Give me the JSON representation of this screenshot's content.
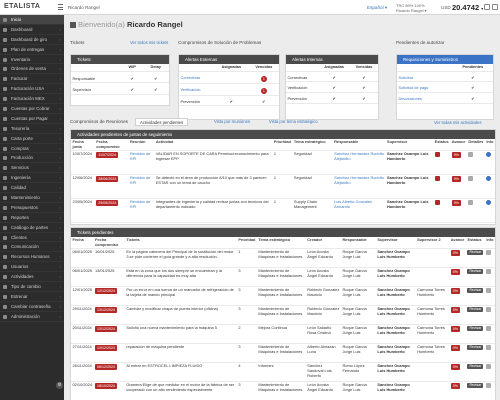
{
  "topbar": {
    "logo": "ETALISTA",
    "breadcrumb": "Ricardo Rangel",
    "language": "Español ▾",
    "user_line1": "TRC 89% 100%",
    "user_line2": "Ricardo Rangel ▾",
    "currency": "USD",
    "exchange": "20.4742",
    "exchange_suffix": "▾"
  },
  "sidebar": {
    "items": [
      {
        "label": "Inicio",
        "icon": "home-icon",
        "active": true
      },
      {
        "label": "Dashboard",
        "icon": "dashboard-icon"
      },
      {
        "label": "Dashboard de giro",
        "icon": "dashboard-icon"
      },
      {
        "label": "Plan de entregas",
        "icon": "calendar-icon"
      },
      {
        "label": "Inventario",
        "icon": "box-icon"
      },
      {
        "label": "Órdenes de venta",
        "icon": "cart-icon"
      },
      {
        "label": "Facturar",
        "icon": "invoice-icon"
      },
      {
        "label": "Facturación USA",
        "icon": "invoice-icon"
      },
      {
        "label": "Facturación MEX",
        "icon": "invoice-icon"
      },
      {
        "label": "Cuentas por Cobrar",
        "icon": "money-icon"
      },
      {
        "label": "Cuentas por Pagar",
        "icon": "money-icon"
      },
      {
        "label": "Tesorería",
        "icon": "bank-icon"
      },
      {
        "label": "Carta porte",
        "icon": "truck-icon"
      },
      {
        "label": "Compras",
        "icon": "bag-icon"
      },
      {
        "label": "Producción",
        "icon": "factory-icon"
      },
      {
        "label": "Servicios",
        "icon": "wrench-icon"
      },
      {
        "label": "Ingeniería",
        "icon": "gear-icon"
      },
      {
        "label": "Calidad",
        "icon": "check-icon"
      },
      {
        "label": "Mantenimiento",
        "icon": "tools-icon"
      },
      {
        "label": "Presupuestos",
        "icon": "chart-icon"
      },
      {
        "label": "Reportes",
        "icon": "report-icon"
      },
      {
        "label": "Catálogo de partes",
        "icon": "catalog-icon"
      },
      {
        "label": "Clientes",
        "icon": "users-icon"
      },
      {
        "label": "Comunicación",
        "icon": "chat-icon"
      },
      {
        "label": "Recursos Humanos",
        "icon": "people-icon"
      },
      {
        "label": "Usuarios",
        "icon": "user-icon"
      },
      {
        "label": "Actividades",
        "icon": "list-icon"
      },
      {
        "label": "Tipo de cambio",
        "icon": "exchange-icon"
      },
      {
        "label": "Estrenar",
        "icon": "star-icon"
      },
      {
        "label": "Cambiar contraseña",
        "icon": "lock-icon"
      },
      {
        "label": "Administración",
        "icon": "admin-icon"
      }
    ]
  },
  "page": {
    "title_prefix": "Bienvenido(a)",
    "title_name": "Ricardo Rangel"
  },
  "tickets_summary": {
    "title": "Tickets",
    "link": "Ver todos mis tickets",
    "header": "Tickets",
    "cols": [
      "",
      "WIP",
      "Delay"
    ],
    "rows": [
      {
        "label": "Responsable",
        "wip": "✔",
        "delay": "✔"
      },
      {
        "label": "Supervisor",
        "wip": "✔",
        "delay": "✔"
      }
    ]
  },
  "compromisos": {
    "title": "Compromisos de Solución de Problemas",
    "externas": {
      "header": "Alertas Externas",
      "cols": [
        "",
        "Asignadas",
        "Vencidas"
      ],
      "rows": [
        {
          "label": "Correctivas",
          "a": "",
          "v": "1"
        },
        {
          "label": "Verificación",
          "a": "",
          "v": "1"
        },
        {
          "label": "Prevención",
          "a": "✔",
          "v": "✔"
        }
      ]
    },
    "internas": {
      "header": "Alertas Internas",
      "cols": [
        "",
        "Asignadas",
        "Vencidas"
      ],
      "rows": [
        {
          "label": "Correctivas",
          "a": "✔",
          "v": "✔"
        },
        {
          "label": "Verificación",
          "a": "✔",
          "v": "✔"
        },
        {
          "label": "Prevención",
          "a": "✔",
          "v": "✔"
        }
      ]
    }
  },
  "pendientes": {
    "title": "Pendientes de autorizar",
    "header": "Requisiciones y Suministros",
    "cols": [
      "",
      "Pendientes"
    ],
    "rows": [
      {
        "label": "Solicitud",
        "v": "✔"
      },
      {
        "label": "Solicitud de pago",
        "v": "✔"
      },
      {
        "label": "Devoluciones",
        "v": "✔"
      }
    ]
  },
  "reuniones": {
    "title": "Compromisos de Reuniones",
    "tab_active": "Actividades pendientes",
    "tab2": "Vista por reuniones",
    "tab3": "Vista por tema estratégico",
    "link": "Ver todas mis actividades",
    "header": "Actividades pendientes de juntas de seguimiento",
    "cols": [
      "Fecha junta",
      "Fecha compromiso",
      "Reunión",
      "Actividad",
      "Prioridad",
      "Tema estratégico",
      "Responsable",
      "Supervisor",
      "Estatus",
      "Avance",
      "Detalles",
      "Info"
    ],
    "rows": [
      {
        "junta": "10/07/2024",
        "comp": "11/07/2024",
        "reunion": "Revisión de KPI",
        "act": "VALIDAR EN SOPORTE DE CARA Permiso/reconocimiento para ingresar EPP",
        "prio": "1",
        "tema": "Seguridad",
        "resp": "Sanchez Hernandez Rodolfo Alejandro",
        "sup": "Sanchez Ocampo Luis Humberto",
        "est": "red",
        "avance": "0%"
      },
      {
        "junta": "12/06/2024",
        "comp": "28/06/2024",
        "reunion": "Revisión de KPI",
        "act": "Se detectó en el área de producción 8/10 que más de 3 parecer: ESTAR con un tema de caucho",
        "prio": "1",
        "tema": "Seguridad",
        "resp": "Sanchez Hernandez Rodolfo Alejandro",
        "sup": "Sanchez Ocampo Luis Humberto",
        "est": "red",
        "avance": "0%"
      },
      {
        "junta": "23/05/2024",
        "comp": "29/05/2024",
        "reunion": "Revisión de KPI",
        "act": "Integrantes de ingeniería y calidad revisar juntas con tecnicos del departamento indicado",
        "prio": "1",
        "tema": "Supply Chain Management",
        "resp": "Luis Alberto Gonzalez Armando",
        "sup": "Sanchez Ocampo Luis Humberto",
        "est": "red",
        "avance": "0%"
      }
    ]
  },
  "tickets": {
    "header": "Tickets pendientes",
    "cols": [
      "Fecha",
      "Fecha compromiso",
      "Tickets",
      "Prioridad",
      "Tema estratégico",
      "Creador",
      "Responsable",
      "Supervisor",
      "Supervisor 2",
      "Avance",
      "Estatus",
      "Info"
    ],
    "rows": [
      {
        "fecha": "06/01/2025",
        "comp": "10/01/2025",
        "tag": "",
        "ticket": "En la página cabecera del Principal de la sustitución del motor 3 se pide contener el guía grande y a alta resolución.",
        "prio": "1",
        "tema": "Mantenimiento de Maquinas e Instalaciones",
        "creador": "León Acosta Ángel Eduardo",
        "resp": "Roque García Jorge Luis",
        "sup": "Sanchez Ocampo Luis Humberto",
        "sup2": "",
        "avance": "0%",
        "est": "Revisar"
      },
      {
        "fecha": "06/01/2025",
        "comp": "13/01/2025",
        "tag": "",
        "ticket": "Está en la zona que los dos siempre se encuentran y la diferencia para la capacidad es muy alta",
        "prio": "3",
        "tema": "Mantenimiento de Maquinas e Instalaciones",
        "creador": "León Acosta Ángel Eduardo",
        "resp": "Roque García Jorge Luis",
        "sup": "Sanchez Ocampo Luis Humberto",
        "sup2": "",
        "avance": "0%",
        "est": "Revisar"
      },
      {
        "fecha": "12/01/2025",
        "comp": "",
        "tag": "12/12/2024",
        "ticket": "Por un error en una tuerca de un marcador de refrigeración de la tarjeta de mando principal",
        "prio": "3",
        "tema": "Mantenimiento de Maquinas e Instalaciones",
        "creador": "Robledo Gonzalez Mauricio",
        "resp": "Roque García Jorge Luis",
        "sup": "Sanchez Ocampo Luis Humberto",
        "sup2": "Carmona Torres Humberto",
        "avance": "0%",
        "est": "Revisar"
      },
      {
        "fecha": "29/11/2024",
        "comp": "",
        "tag": "13/12/2024",
        "ticket": "Cambiar y modificar chapa de puerta interior (oficina)",
        "prio": "3",
        "tema": "Mantenimiento de Maquinas e Instalaciones",
        "creador": "Robledo Gonzalez Mauricio",
        "resp": "Roque García Jorge Luis",
        "sup": "Sanchez Ocampo Luis Humberto",
        "sup2": "Carmona Torres Humberto",
        "avance": "0%",
        "est": "Revisar"
      },
      {
        "fecha": "20/11/2024",
        "comp": "",
        "tag": "13/12/2024",
        "ticket": "Solicito una nueva mantenimiento para la máquina 5",
        "prio": "2",
        "tema": "Mejora Continua",
        "creador": "León Saldaño Rosa Cristina",
        "resp": "Roque García Jorge Luis",
        "sup": "Sanchez Ocampo Luis Humberto",
        "sup2": "Carmona Torres Humberto",
        "avance": "0%",
        "est": "Revisar"
      },
      {
        "fecha": "27/11/2024",
        "comp": "",
        "tag": "13/12/2024",
        "ticket": "reparación de máquina pendiente",
        "prio": "3",
        "tema": "Mantenimiento de Maquinas e Instalaciones",
        "creador": "Alberto Almazan Luna",
        "resp": "Roque García Jorge Luis",
        "sup": "Sanchez Ocampo Luis Humberto",
        "sup2": "Carmona Torres Humberto",
        "avance": "0%",
        "est": "Revisar"
      },
      {
        "fecha": "26/11/2024",
        "comp": "",
        "tag": "06/12/2024",
        "ticket": "Al entrar en ESTROCEL LIMPIEZA FLUIDO",
        "prio": "4",
        "tema": "Informes",
        "creador": "Sanchez Sandoval Luis Roberto",
        "resp": "Romo López Fernando",
        "sup": "Sanchez Ocampo Luis Humberto",
        "sup2": "",
        "avance": "0%",
        "est": "Revisar"
      },
      {
        "fecha": "02/10/2024",
        "comp": "",
        "tag": "18/10/2024",
        "ticket": "Gramera Elige de que medidor en el motor de la fábrica de ser cooperado con un alto rendimiento especialmente",
        "prio": "3",
        "tema": "Mantenimiento de Maquinas e Instalaciones",
        "creador": "León Acosta Ángel Eduardo",
        "resp": "Roque García Jorge Luis",
        "sup": "Sanchez Ocampo Luis Humberto",
        "sup2": "",
        "avance": "0%",
        "est": "Revisar"
      }
    ]
  }
}
